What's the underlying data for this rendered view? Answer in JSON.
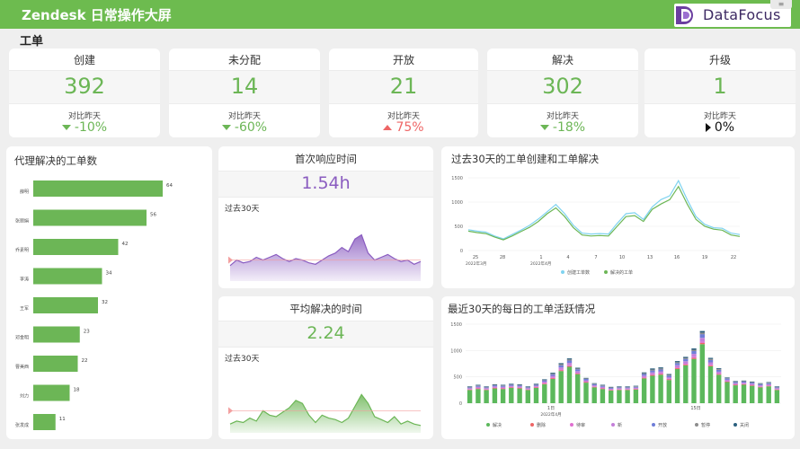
{
  "header": {
    "title": "Zendesk 日常操作大屏",
    "logo_text": "DataFocus",
    "close_glyph": "≡"
  },
  "section": {
    "title": "工单"
  },
  "kpis": [
    {
      "label": "创建",
      "value": "392",
      "compare_label": "对比昨天",
      "delta": "-10%",
      "direction": "down"
    },
    {
      "label": "未分配",
      "value": "14",
      "compare_label": "对比昨天",
      "delta": "-60%",
      "direction": "down"
    },
    {
      "label": "开放",
      "value": "21",
      "compare_label": "对比昨天",
      "delta": "75%",
      "direction": "up"
    },
    {
      "label": "解决",
      "value": "302",
      "compare_label": "对比昨天",
      "delta": "-18%",
      "direction": "down"
    },
    {
      "label": "升级",
      "value": "1",
      "compare_label": "对比昨天",
      "delta": "0%",
      "direction": "flat"
    }
  ],
  "colors": {
    "brand_green": "#6dbb4f",
    "value_green": "#6cb656",
    "purple": "#8a5cc0",
    "red": "#ee6666",
    "line_blue": "#7fd3f0"
  },
  "agents_panel": {
    "title": "代理解决的工单数"
  },
  "first_response": {
    "title": "首次响应时间",
    "value": "1.54h",
    "sub_label": "过去30天"
  },
  "avg_resolve": {
    "title": "平均解决的时间",
    "value": "2.24",
    "sub_label": "过去30天"
  },
  "trend_panel": {
    "title": "过去30天的工单创建和工单解决"
  },
  "daily_panel": {
    "title": "最近30天的每日的工单活跃情况"
  },
  "chart_data": [
    {
      "type": "bar",
      "orientation": "horizontal",
      "categories": [
        "薛明",
        "张丽娟",
        "乔素明",
        "李涛",
        "王军",
        "邓金明",
        "曹美西",
        "刘力",
        "张发成"
      ],
      "values": [
        64,
        56,
        42,
        34,
        32,
        23,
        22,
        18,
        11
      ],
      "xlim": [
        0,
        80
      ]
    },
    {
      "type": "area",
      "values": [
        22,
        30,
        26,
        28,
        34,
        30,
        34,
        38,
        32,
        28,
        32,
        30,
        26,
        24,
        30,
        36,
        40,
        48,
        42,
        60,
        66,
        40,
        30,
        34,
        38,
        32,
        28,
        30,
        24,
        28
      ],
      "ylim": [
        0,
        100
      ]
    },
    {
      "type": "area",
      "values": [
        12,
        16,
        14,
        20,
        16,
        30,
        24,
        22,
        28,
        34,
        44,
        40,
        24,
        14,
        24,
        20,
        18,
        14,
        20,
        36,
        52,
        40,
        22,
        18,
        14,
        22,
        12,
        16,
        12,
        10
      ],
      "ylim": [
        0,
        100
      ]
    },
    {
      "type": "line",
      "x_ticks": [
        "25",
        "28",
        "1",
        "4",
        "7",
        "10",
        "13",
        "16",
        "19",
        "22"
      ],
      "x_sub_labels": [
        "2022年3月",
        "2022年4月"
      ],
      "yticks": [
        0,
        500,
        1000,
        1500
      ],
      "ylim": [
        0,
        1500
      ],
      "series": [
        {
          "name": "创建工单数",
          "values": [
            430,
            400,
            380,
            300,
            240,
            330,
            420,
            520,
            650,
            800,
            950,
            760,
            520,
            360,
            340,
            350,
            340,
            560,
            760,
            780,
            640,
            900,
            1050,
            1130,
            1440,
            1050,
            700,
            540,
            470,
            460,
            360,
            330
          ]
        },
        {
          "name": "解决的工单",
          "values": [
            400,
            370,
            350,
            280,
            220,
            300,
            390,
            480,
            600,
            760,
            880,
            700,
            470,
            320,
            300,
            310,
            300,
            500,
            700,
            720,
            600,
            850,
            960,
            1050,
            1320,
            960,
            640,
            500,
            440,
            420,
            320,
            290
          ]
        }
      ]
    },
    {
      "type": "bar",
      "stacked": true,
      "x_ticks": [
        "1日",
        "15日"
      ],
      "x_sub_label": "2022年4月",
      "yticks": [
        0,
        500,
        1000,
        1500
      ],
      "ylim": [
        0,
        1500
      ],
      "series": [
        {
          "name": "解决",
          "color": "#5cb85c",
          "values": [
            250,
            270,
            250,
            280,
            270,
            290,
            280,
            250,
            290,
            360,
            460,
            610,
            690,
            550,
            390,
            300,
            270,
            240,
            250,
            250,
            260,
            470,
            520,
            540,
            440,
            650,
            720,
            840,
            1120,
            700,
            540,
            400,
            340,
            350,
            330,
            300,
            320,
            250
          ]
        },
        {
          "name": "删除",
          "color": "#ee6666",
          "values": [
            10,
            10,
            10,
            10,
            10,
            10,
            10,
            10,
            10,
            12,
            15,
            15,
            15,
            12,
            10,
            10,
            10,
            10,
            10,
            10,
            10,
            12,
            15,
            15,
            12,
            15,
            15,
            20,
            25,
            15,
            12,
            10,
            10,
            10,
            10,
            10,
            10,
            10
          ]
        },
        {
          "name": "待审",
          "color": "#e06fd0",
          "values": [
            10,
            10,
            10,
            10,
            10,
            10,
            10,
            10,
            10,
            12,
            15,
            15,
            15,
            12,
            10,
            10,
            10,
            10,
            10,
            10,
            10,
            12,
            15,
            15,
            12,
            15,
            15,
            20,
            25,
            15,
            12,
            10,
            10,
            10,
            10,
            10,
            10,
            10
          ]
        },
        {
          "name": "新",
          "color": "#c47fd9",
          "values": [
            15,
            20,
            15,
            20,
            20,
            20,
            20,
            15,
            20,
            25,
            30,
            40,
            45,
            35,
            25,
            20,
            20,
            15,
            15,
            15,
            15,
            30,
            35,
            35,
            30,
            40,
            45,
            55,
            70,
            45,
            35,
            25,
            20,
            20,
            20,
            20,
            20,
            15
          ]
        },
        {
          "name": "开放",
          "color": "#6f7ed8",
          "values": [
            15,
            20,
            15,
            20,
            20,
            20,
            20,
            15,
            20,
            25,
            30,
            40,
            45,
            35,
            25,
            20,
            20,
            15,
            15,
            15,
            15,
            30,
            35,
            35,
            30,
            40,
            45,
            55,
            70,
            45,
            35,
            25,
            20,
            20,
            20,
            20,
            20,
            15
          ]
        },
        {
          "name": "暂停",
          "color": "#8c8c8c",
          "values": [
            10,
            10,
            10,
            10,
            10,
            10,
            10,
            10,
            10,
            10,
            15,
            20,
            20,
            15,
            10,
            10,
            10,
            10,
            10,
            10,
            10,
            15,
            20,
            20,
            15,
            20,
            20,
            25,
            30,
            20,
            15,
            10,
            10,
            10,
            10,
            10,
            10,
            10
          ]
        },
        {
          "name": "关闭",
          "color": "#2a5f7e",
          "values": [
            10,
            10,
            10,
            10,
            10,
            10,
            10,
            10,
            10,
            10,
            15,
            20,
            20,
            15,
            10,
            10,
            10,
            10,
            10,
            10,
            10,
            15,
            20,
            20,
            15,
            20,
            20,
            25,
            30,
            20,
            15,
            10,
            10,
            10,
            10,
            10,
            10,
            10
          ]
        }
      ]
    }
  ]
}
